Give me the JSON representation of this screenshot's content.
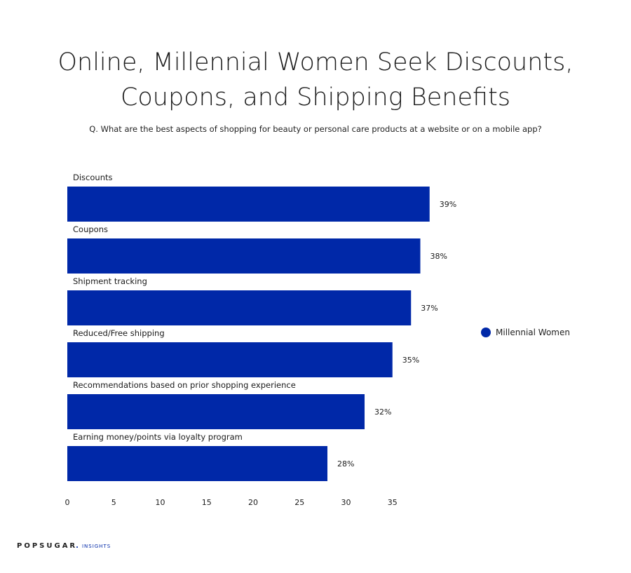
{
  "chart_data": {
    "type": "bar",
    "orientation": "horizontal",
    "title_lines": [
      "Online, Millennial Women Seek Discounts,",
      "Coupons, and Shipping Benefits"
    ],
    "subtitle": "Q. What are the best aspects of shopping for beauty or personal care products at a website or on a mobile app?",
    "categories": [
      "Discounts",
      "Coupons",
      "Shipment tracking",
      "Reduced/Free shipping",
      "Recommendations based on prior shopping experience",
      "Earning money/points via loyalty program"
    ],
    "series": [
      {
        "name": "Millennial Women",
        "values": [
          39,
          38,
          37,
          35,
          32,
          28
        ],
        "labels": [
          "39%",
          "38%",
          "37%",
          "35%",
          "32%",
          "28%"
        ],
        "color": "#0028a8"
      }
    ],
    "x_ticks": [
      "0",
      "5",
      "10",
      "15",
      "20",
      "25",
      "30",
      "35"
    ],
    "xlim": [
      0,
      39
    ],
    "grid": false,
    "legend_position": "right"
  },
  "legend": {
    "label": "Millennial Women",
    "color": "#0028a8"
  },
  "brand": {
    "name": "POPSUGAR",
    "suffix": "INSIGHTS"
  }
}
